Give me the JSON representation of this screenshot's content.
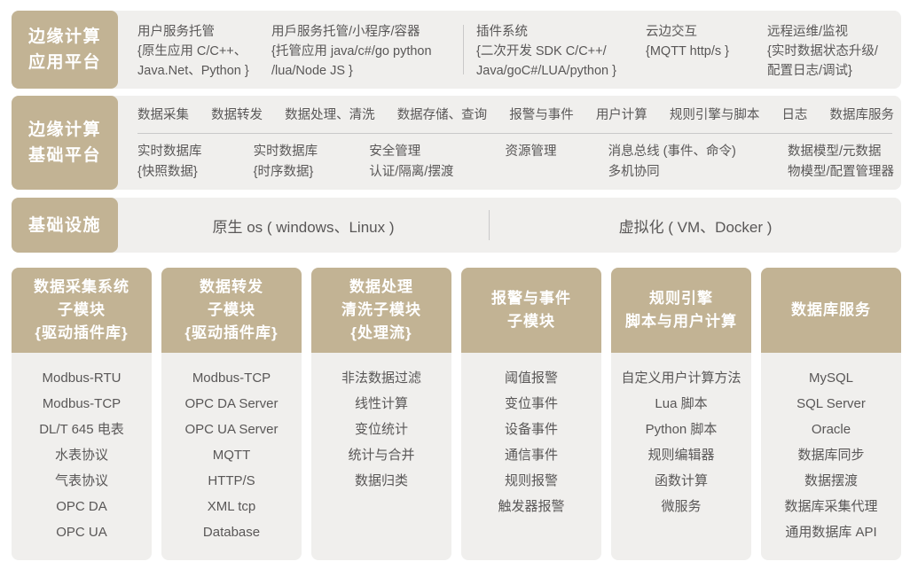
{
  "colors": {
    "tan": "#c2b394",
    "panel": "#f0efed",
    "text": "#595757",
    "divider": "#c9c9c9",
    "white": "#ffffff"
  },
  "app_platform": {
    "label_line1": "边缘计算",
    "label_line2": "应用平台",
    "columns": [
      {
        "title": "用户服务托管",
        "detail": "{原生应用 C/C++、\nJava.Net、Python }"
      },
      {
        "title": "用戶服务托管/小程序/容器",
        "detail": "{托管应用 java/c#/go python\n/lua/Node JS }"
      },
      {
        "title": "插件系统",
        "detail": "{二次开发 SDK C/C++/\nJava/goC#/LUA/python }"
      },
      {
        "title": "云边交互",
        "detail": "{MQTT http/s }"
      },
      {
        "title": "远程运维/监视",
        "detail": "{实时数据状态升级/\n配置日志/调试}"
      }
    ]
  },
  "base_platform": {
    "label_line1": "边缘计算",
    "label_line2": "基础平台",
    "services": [
      "数据采集",
      "数据转发",
      "数据处理、清洗",
      "数据存储、查询",
      "报警与事件",
      "用户计算",
      "规则引擎与脚本",
      "日志",
      "数据库服务"
    ],
    "components": [
      "实时数据库\n{快照数据}",
      "实时数据库\n{时序数据}",
      "安全管理\n认证/隔离/摆渡",
      "资源管理",
      "消息总线 (事件、命令)\n多机协同",
      "数据模型/元数据\n物模型/配置管理器"
    ]
  },
  "infrastructure": {
    "label": "基础设施",
    "native_os": "原生 os ( windows、Linux )",
    "virtualization": "虚拟化 ( VM、Docker )"
  },
  "modules": [
    {
      "title": "数据采集系统\n子模块\n{驱动插件库}",
      "items": [
        "Modbus-RTU",
        "Modbus-TCP",
        "DL/T 645 电表",
        "水表协议",
        "气表协议",
        "OPC DA",
        "OPC UA"
      ]
    },
    {
      "title": "数据转发\n子模块\n{驱动插件库}",
      "items": [
        "Modbus-TCP",
        "OPC DA Server",
        "OPC UA Server",
        "MQTT",
        "HTTP/S",
        "XML tcp",
        "Database"
      ]
    },
    {
      "title": "数据处理\n清洗子模块\n{处理流}",
      "items": [
        "非法数据过滤",
        "线性计算",
        "变位统计",
        "统计与合并",
        "数据归类"
      ]
    },
    {
      "title": "报警与事件\n子模块",
      "items": [
        "阈值报警",
        "变位事件",
        "设备事件",
        "通信事件",
        "规则报警",
        "触发器报警"
      ]
    },
    {
      "title": "规则引擎\n脚本与用户计算",
      "items": [
        "自定义用户计算方法",
        "Lua 脚本",
        "Python 脚本",
        "规则编辑器",
        "函数计算",
        "微服务"
      ]
    },
    {
      "title": "数据库服务",
      "items": [
        "MySQL",
        "SQL Server",
        "Oracle",
        "数据库同步",
        "数据摆渡",
        "数据库采集代理",
        "通用数据库 API"
      ]
    }
  ]
}
